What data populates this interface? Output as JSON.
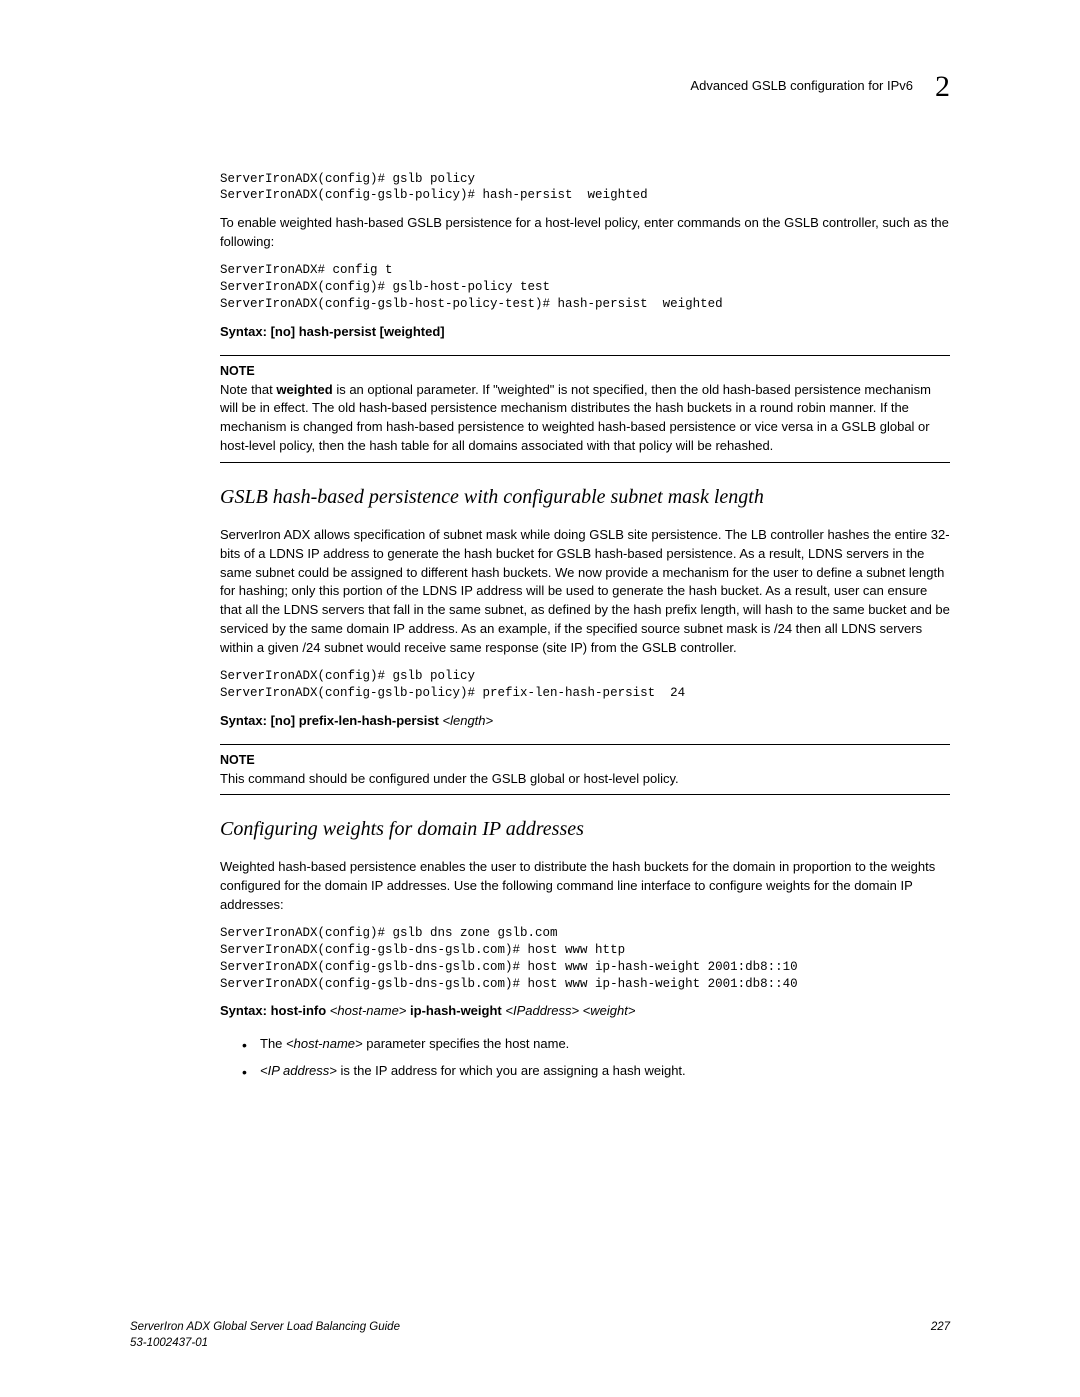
{
  "header": {
    "text": "Advanced GSLB configuration for IPv6",
    "chapter": "2"
  },
  "code1": "ServerIronADX(config)# gslb policy\nServerIronADX(config-gslb-policy)# hash-persist  weighted",
  "para1": "To enable weighted hash-based GSLB persistence for a host-level policy, enter commands on the GSLB controller, such as the following:",
  "code2": "ServerIronADX# config t\nServerIronADX(config)# gslb-host-policy test\nServerIronADX(config-gslb-host-policy-test)# hash-persist  weighted",
  "syntax1_prefix": "Syntax:  ",
  "syntax1_bold": "[no] hash-persist [weighted]",
  "note1_label": "NOTE",
  "note1_prefix": "Note that ",
  "note1_bold": "weighted",
  "note1_suffix": " is an optional parameter. If \"weighted\" is not specified, then the old hash-based persistence mechanism will be in effect. The old hash-based persistence mechanism distributes the hash buckets in a round robin manner. If the mechanism is changed from hash-based persistence to weighted hash-based persistence or vice versa in a GSLB global or host-level policy, then the hash table for all domains associated with that policy will be rehashed.",
  "section1_heading": "GSLB hash-based persistence with configurable subnet mask length",
  "section1_para": "ServerIron ADX allows specification of subnet mask while doing GSLB site persistence. The LB controller hashes the entire 32-bits of a LDNS IP address to generate the hash bucket for GSLB hash-based persistence. As a result, LDNS servers in the same subnet could be assigned to different hash buckets. We now provide a mechanism for the user to define a subnet length for hashing; only this portion of the LDNS IP address will be used to generate the hash bucket. As a result, user can ensure that all the LDNS servers that fall in the same subnet, as defined by the hash prefix length, will hash to the same bucket and be serviced by the same domain IP address. As an example, if the specified source subnet mask is /24 then all LDNS servers within a given /24 subnet would receive same response (site IP) from the GSLB controller.",
  "code3": "ServerIronADX(config)# gslb policy\nServerIronADX(config-gslb-policy)# prefix-len-hash-persist  24",
  "syntax2_prefix": "Syntax:   ",
  "syntax2_bold": "[no] prefix-len-hash-persist ",
  "syntax2_italic": "<length>",
  "note2_label": "NOTE",
  "note2_text": "This command should be configured under the GSLB global or host-level policy.",
  "section2_heading": "Configuring weights for domain IP addresses",
  "section2_para": "Weighted hash-based persistence enables the user to distribute the hash buckets for the domain in proportion to the weights configured for the domain IP addresses. Use the following command line interface to configure weights for the domain IP addresses:",
  "code4": "ServerIronADX(config)# gslb dns zone gslb.com\nServerIronADX(config-gslb-dns-gslb.com)# host www http\nServerIronADX(config-gslb-dns-gslb.com)# host www ip-hash-weight 2001:db8::10\nServerIronADX(config-gslb-dns-gslb.com)# host www ip-hash-weight 2001:db8::40",
  "syntax3_prefix": "Syntax:  ",
  "syntax3_b1": "host-info ",
  "syntax3_i1": "<host-name> ",
  "syntax3_b2": "ip-hash-weight ",
  "syntax3_i2": "<IPaddress> <weight>",
  "bullet1_pre": "The ",
  "bullet1_i": "<host-name>",
  "bullet1_post": " parameter specifies the host name.",
  "bullet2_i": "<IP address>",
  "bullet2_post": " is the IP address for which you are assigning a hash weight.",
  "footer": {
    "left_line1": "ServerIron ADX Global Server Load Balancing Guide",
    "left_line2": "53-1002437-01",
    "page": "227"
  }
}
